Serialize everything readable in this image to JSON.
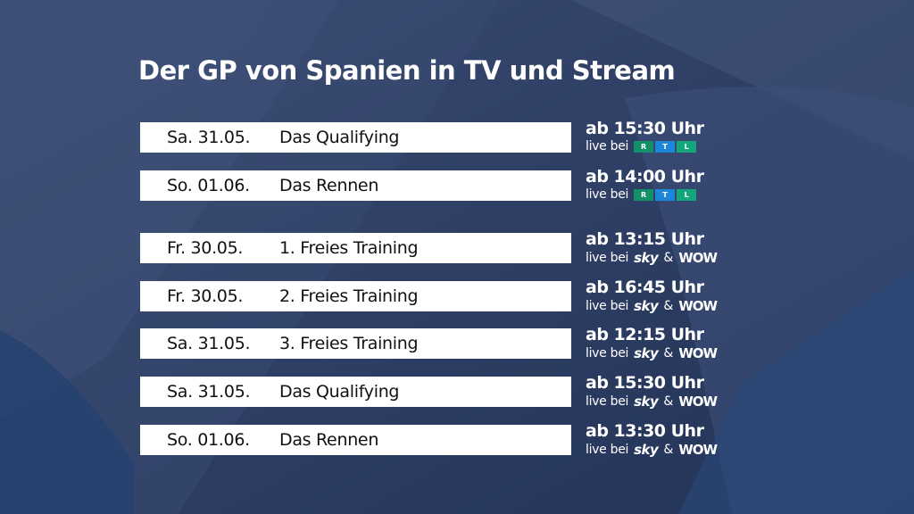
{
  "title": "Der GP von Spanien in TV und Stream",
  "colors": {
    "background": "#2e3f66",
    "bar": "#ffffff",
    "rtl_red": "#12906a",
    "rtl_mid": "#1c87d8",
    "rtl_right": "#13a67a"
  },
  "rtl_logo": [
    "R",
    "T",
    "L"
  ],
  "rows": [
    {
      "date": "Sa. 31.05.",
      "session": "Das Qualifying",
      "time": "ab 15:30 Uhr",
      "live": "live bei",
      "provider": "rtl"
    },
    {
      "date": "So. 01.06.",
      "session": "Das Rennen",
      "time": "ab 14:00 Uhr",
      "live": "live bei",
      "provider": "rtl"
    },
    {
      "date": "Fr. 30.05.",
      "session": "1. Freies Training",
      "time": "ab 13:15 Uhr",
      "live": "live bei",
      "sky": "sky",
      "amp": "&",
      "wow": "WOW"
    },
    {
      "date": "Fr. 30.05.",
      "session": "2. Freies Training",
      "time": "ab 16:45 Uhr",
      "live": "live bei",
      "sky": "sky",
      "amp": "&",
      "wow": "WOW"
    },
    {
      "date": "Sa. 31.05.",
      "session": "3. Freies Training",
      "time": "ab 12:15 Uhr",
      "live": "live bei",
      "sky": "sky",
      "amp": "&",
      "wow": "WOW"
    },
    {
      "date": "Sa. 31.05.",
      "session": "Das Qualifying",
      "time": "ab 15:30 Uhr",
      "live": "live bei",
      "sky": "sky",
      "amp": "&",
      "wow": "WOW"
    },
    {
      "date": "So. 01.06.",
      "session": "Das Rennen",
      "time": "ab 13:30 Uhr",
      "live": "live bei",
      "sky": "sky",
      "amp": "&",
      "wow": "WOW"
    }
  ]
}
